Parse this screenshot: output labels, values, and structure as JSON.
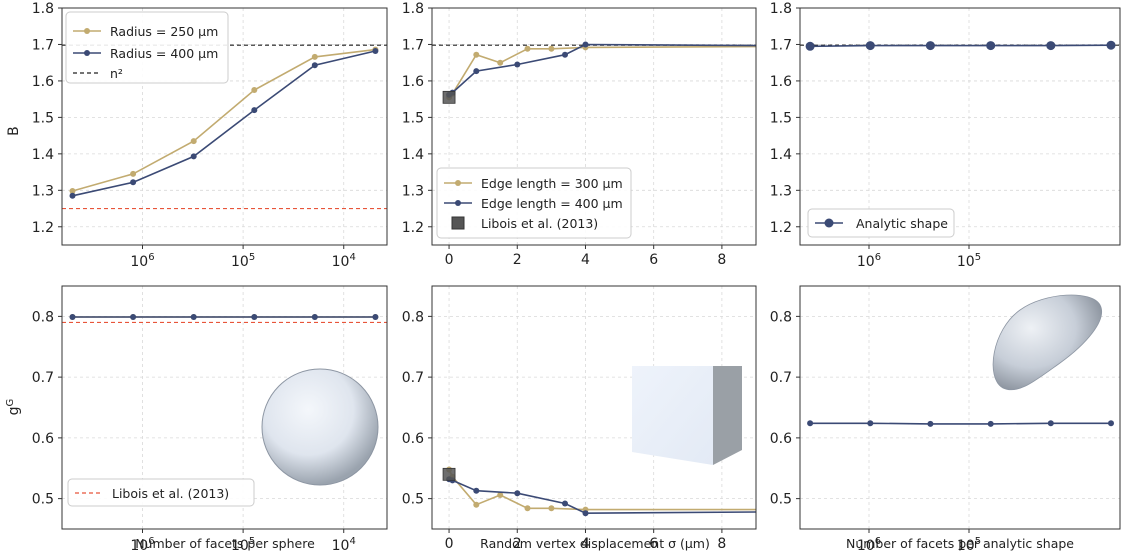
{
  "colors": {
    "gold": "#c2ab70",
    "navy": "#3b4a75",
    "ref_dashed": "#222222",
    "libois_red": "#e8553a",
    "grid": "#d9d9d9",
    "square_marker": "#555555"
  },
  "chart_data": [
    {
      "id": "top-left",
      "type": "line",
      "xscale": "log-reversed",
      "ylabel": "B",
      "xlabel": "",
      "xtick_labels": [
        "10^6",
        "10^5",
        "10^4"
      ],
      "ylim": [
        1.15,
        1.8
      ],
      "yticks": [
        "1.2",
        "1.3",
        "1.4",
        "1.5",
        "1.6",
        "1.7",
        "1.8"
      ],
      "series": [
        {
          "name": "Radius = 250 µm",
          "color": "gold",
          "x": [
            4960000,
            1240000,
            310000,
            77500,
            19400,
            4850
          ],
          "y": [
            1.298,
            1.345,
            1.435,
            1.575,
            1.666,
            1.686
          ]
        },
        {
          "name": "Radius = 400 µm",
          "color": "navy",
          "x": [
            4960000,
            1240000,
            310000,
            77500,
            19400,
            4850
          ],
          "y": [
            1.285,
            1.322,
            1.393,
            1.52,
            1.643,
            1.682
          ]
        }
      ],
      "hlines": [
        {
          "name": "n²",
          "y": 1.698,
          "color": "ref_dashed"
        },
        {
          "name": "",
          "y": 1.25,
          "color": "libois_red"
        }
      ],
      "legend": {
        "placement": "top-left",
        "entries": [
          "Radius = 250 µm",
          "Radius = 400 µm",
          "n²"
        ]
      }
    },
    {
      "id": "top-middle",
      "type": "line",
      "xscale": "linear",
      "xlim": [
        -0.5,
        9
      ],
      "xticks": [
        "0",
        "2",
        "4",
        "6",
        "8"
      ],
      "ylim": [
        1.15,
        1.8
      ],
      "yticks": [
        "1.2",
        "1.3",
        "1.4",
        "1.5",
        "1.6",
        "1.7",
        "1.8"
      ],
      "series": [
        {
          "name": "Edge length = 300 µm",
          "color": "gold",
          "x": [
            0,
            0.1,
            0.8,
            1.5,
            2.3,
            3.0,
            4.0,
            9
          ],
          "y": [
            1.555,
            1.565,
            1.672,
            1.65,
            1.688,
            1.688,
            1.692,
            1.694
          ]
        },
        {
          "name": "Edge length = 400 µm",
          "color": "navy",
          "x": [
            0,
            0.1,
            0.8,
            2.0,
            3.4,
            4.0,
            9
          ],
          "y": [
            1.562,
            1.568,
            1.627,
            1.645,
            1.672,
            1.7,
            1.697
          ]
        }
      ],
      "markers": [
        {
          "name": "Libois et al. (2013)",
          "x": 0,
          "y": 1.555
        }
      ],
      "hlines": [
        {
          "name": "n²",
          "y": 1.698,
          "color": "ref_dashed"
        }
      ],
      "legend": {
        "placement": "bottom-left",
        "entries": [
          "Edge length = 300 µm",
          "Edge length = 400 µm",
          "Libois et al. (2013)"
        ]
      }
    },
    {
      "id": "top-right",
      "type": "line",
      "xscale": "log-reversed",
      "xtick_labels": [
        "10^6",
        "10^5"
      ],
      "ylim": [
        1.15,
        1.8
      ],
      "yticks": [
        "1.2",
        "1.3",
        "1.4",
        "1.5",
        "1.6",
        "1.7",
        "1.8"
      ],
      "series": [
        {
          "name": "Analytic shape",
          "color": "navy",
          "x": [
            3880000,
            970000,
            243000,
            60700,
            15200,
            3800
          ],
          "y": [
            1.695,
            1.697,
            1.697,
            1.697,
            1.697,
            1.698
          ]
        }
      ],
      "hlines": [
        {
          "name": "n²",
          "y": 1.698,
          "color": "ref_dashed"
        }
      ],
      "legend": {
        "placement": "bottom-left",
        "entries": [
          "Analytic shape"
        ]
      }
    },
    {
      "id": "bottom-left",
      "type": "line",
      "xscale": "log-reversed",
      "xlabel": "Number of facets per sphere",
      "ylabel": "g^G",
      "xtick_labels": [
        "10^6",
        "10^5",
        "10^4"
      ],
      "ylim": [
        0.45,
        0.85
      ],
      "yticks": [
        "0.5",
        "0.6",
        "0.7",
        "0.8"
      ],
      "series": [
        {
          "name": "Radius = 250 µm",
          "color": "gold",
          "x": [
            4960000,
            1240000,
            310000,
            77500,
            19400,
            4850
          ],
          "y": [
            0.799,
            0.799,
            0.799,
            0.799,
            0.799,
            0.799
          ]
        },
        {
          "name": "Radius = 400 µm",
          "color": "navy",
          "x": [
            4960000,
            1240000,
            310000,
            77500,
            19400,
            4850
          ],
          "y": [
            0.799,
            0.799,
            0.799,
            0.799,
            0.799,
            0.799
          ]
        }
      ],
      "hlines": [
        {
          "name": "Libois et al. (2013)",
          "y": 0.79,
          "color": "libois_red"
        }
      ],
      "legend": {
        "placement": "bottom-left",
        "entries": [
          "Libois et al. (2013)"
        ]
      },
      "inset": "sphere"
    },
    {
      "id": "bottom-middle",
      "type": "line",
      "xscale": "linear",
      "xlabel": "Random vertex displacement σ (µm)",
      "xlim": [
        -0.5,
        9
      ],
      "xticks": [
        "0",
        "2",
        "4",
        "6",
        "8"
      ],
      "ylim": [
        0.45,
        0.85
      ],
      "yticks": [
        "0.5",
        "0.6",
        "0.7",
        "0.8"
      ],
      "series": [
        {
          "name": "Edge length = 300 µm",
          "color": "gold",
          "x": [
            0,
            0.1,
            0.8,
            1.5,
            2.3,
            3.0,
            4.0,
            9
          ],
          "y": [
            0.548,
            0.536,
            0.49,
            0.506,
            0.484,
            0.484,
            0.482,
            0.482
          ]
        },
        {
          "name": "Edge length = 400 µm",
          "color": "navy",
          "x": [
            0,
            0.1,
            0.8,
            2.0,
            3.4,
            4.0,
            9
          ],
          "y": [
            0.532,
            0.53,
            0.513,
            0.509,
            0.492,
            0.476,
            0.478
          ]
        }
      ],
      "markers": [
        {
          "name": "Libois et al. (2013)",
          "x": 0,
          "y": 0.54
        }
      ],
      "inset": "cube"
    },
    {
      "id": "bottom-right",
      "type": "line",
      "xscale": "log-reversed",
      "xlabel": "Number of facets per analytic shape",
      "xtick_labels": [
        "10^6",
        "10^5"
      ],
      "ylim": [
        0.45,
        0.85
      ],
      "yticks": [
        "0.5",
        "0.6",
        "0.7",
        "0.8"
      ],
      "series": [
        {
          "name": "Analytic shape",
          "color": "navy",
          "x": [
            3880000,
            970000,
            243000,
            60700,
            15200,
            3800
          ],
          "y": [
            0.624,
            0.624,
            0.623,
            0.623,
            0.624,
            0.624
          ]
        }
      ],
      "inset": "blob"
    }
  ]
}
